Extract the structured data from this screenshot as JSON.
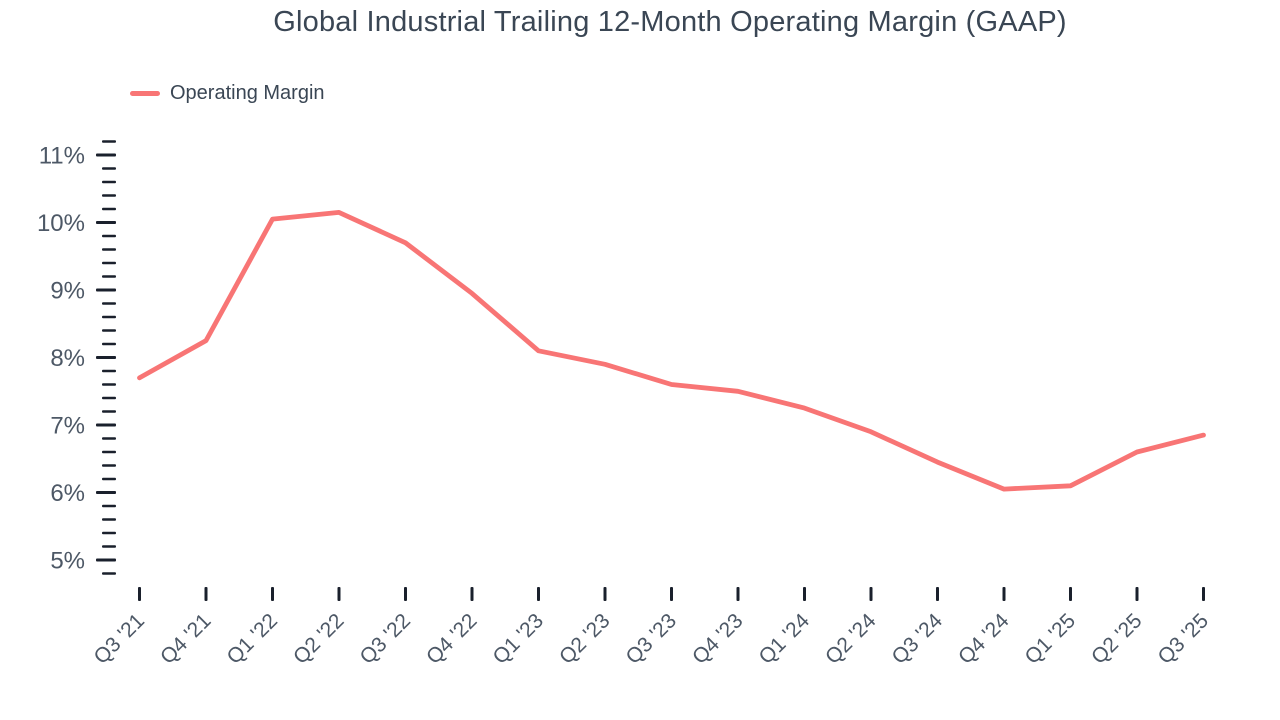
{
  "page": {
    "title": "Global Industrial Trailing 12-Month Operating Margin (GAAP)"
  },
  "legend": {
    "label": "Operating Margin"
  },
  "chart_data": {
    "type": "line",
    "title": "Global Industrial Trailing 12-Month Operating Margin (GAAP)",
    "legend_entries": [
      "Operating Margin"
    ],
    "legend_position": "top-left",
    "categories": [
      "Q3 '21",
      "Q4 '21",
      "Q1 '22",
      "Q2 '22",
      "Q3 '22",
      "Q4 '22",
      "Q1 '23",
      "Q2 '23",
      "Q3 '23",
      "Q4 '23",
      "Q1 '24",
      "Q2 '24",
      "Q3 '24",
      "Q4 '24",
      "Q1 '25",
      "Q2 '25",
      "Q3 '25"
    ],
    "series": [
      {
        "name": "Operating Margin",
        "values": [
          7.7,
          8.25,
          10.05,
          10.15,
          9.7,
          8.95,
          8.1,
          7.9,
          7.6,
          7.5,
          7.25,
          6.9,
          6.45,
          6.05,
          6.1,
          6.6,
          6.85
        ],
        "color": "#f87575"
      }
    ],
    "unit": "%",
    "xlabel": "",
    "ylabel": "",
    "y_axis": {
      "tick_labels": [
        "5%",
        "6%",
        "7%",
        "8%",
        "9%",
        "10%",
        "11%"
      ],
      "major_ticks": [
        5,
        6,
        7,
        8,
        9,
        10,
        11
      ],
      "minor_tick_step": 0.2,
      "range": [
        4.8,
        11.2
      ]
    },
    "grid": false
  },
  "colors": {
    "line": "#f87575",
    "title_text": "#3a4654",
    "axis_label_text": "#4d5866",
    "tick_mark": "#1a202c",
    "background": "#ffffff"
  }
}
